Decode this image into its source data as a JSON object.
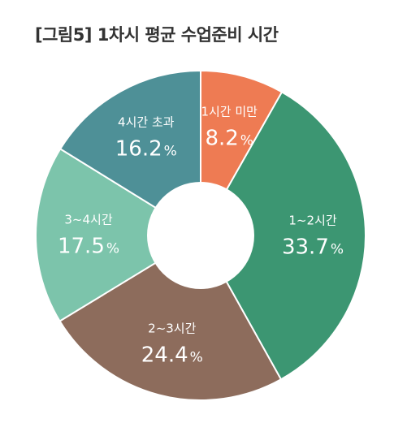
{
  "title": "[그림5] 1차시 평균 수업준비 시간",
  "chart_data": {
    "type": "pie",
    "donut": true,
    "title": "[그림5] 1차시 평균 수업준비 시간",
    "slices": [
      {
        "label": "1시간 미만",
        "value": 8.2,
        "value_text": "8.2",
        "color": "#EE7B53"
      },
      {
        "label": "1~2시간",
        "value": 33.7,
        "value_text": "33.7",
        "color": "#3C9672"
      },
      {
        "label": "2~3시간",
        "value": 24.4,
        "value_text": "24.4",
        "color": "#8D6C5C"
      },
      {
        "label": "3~4시간",
        "value": 17.5,
        "value_text": "17.5",
        "color": "#7CC4AB"
      },
      {
        "label": "4시간 초과",
        "value": 16.2,
        "value_text": "16.2",
        "color": "#4E9097"
      }
    ],
    "percent_sign": "%",
    "start": "12 o'clock",
    "direction": "clockwise"
  }
}
